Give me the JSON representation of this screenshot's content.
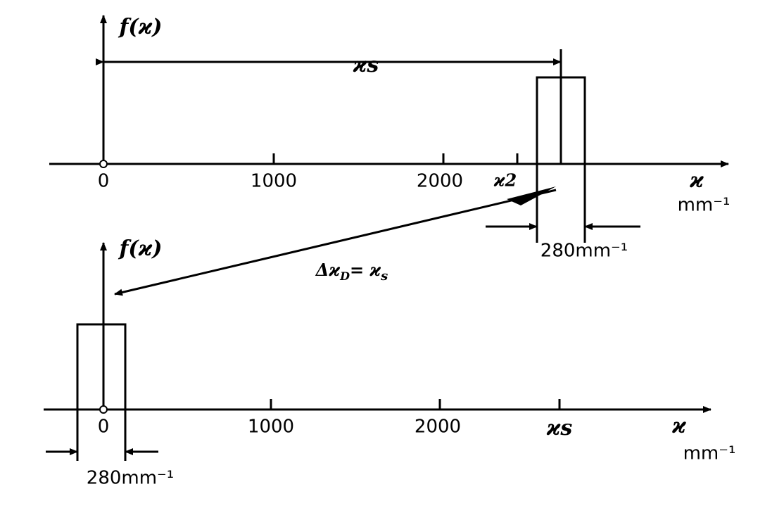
{
  "top_plot": {
    "y_label": "f(ϰ)",
    "span_label": "ϰs",
    "ticks": [
      "0",
      "1000",
      "2000"
    ],
    "marker": "ϰ2",
    "x_label": "ϰ",
    "unit": "mm⁻¹",
    "width_label": "280mm⁻¹"
  },
  "arrow_label": {
    "delta": "Δϰ",
    "sub": "D",
    "equals": "= ϰ",
    "sub2": "s"
  },
  "bottom_plot": {
    "y_label": "f(ϰ)",
    "ticks": [
      "0",
      "1000",
      "2000"
    ],
    "marker": "ϰs",
    "x_label": "ϰ",
    "unit": "mm⁻¹",
    "width_label": "280mm⁻¹"
  }
}
